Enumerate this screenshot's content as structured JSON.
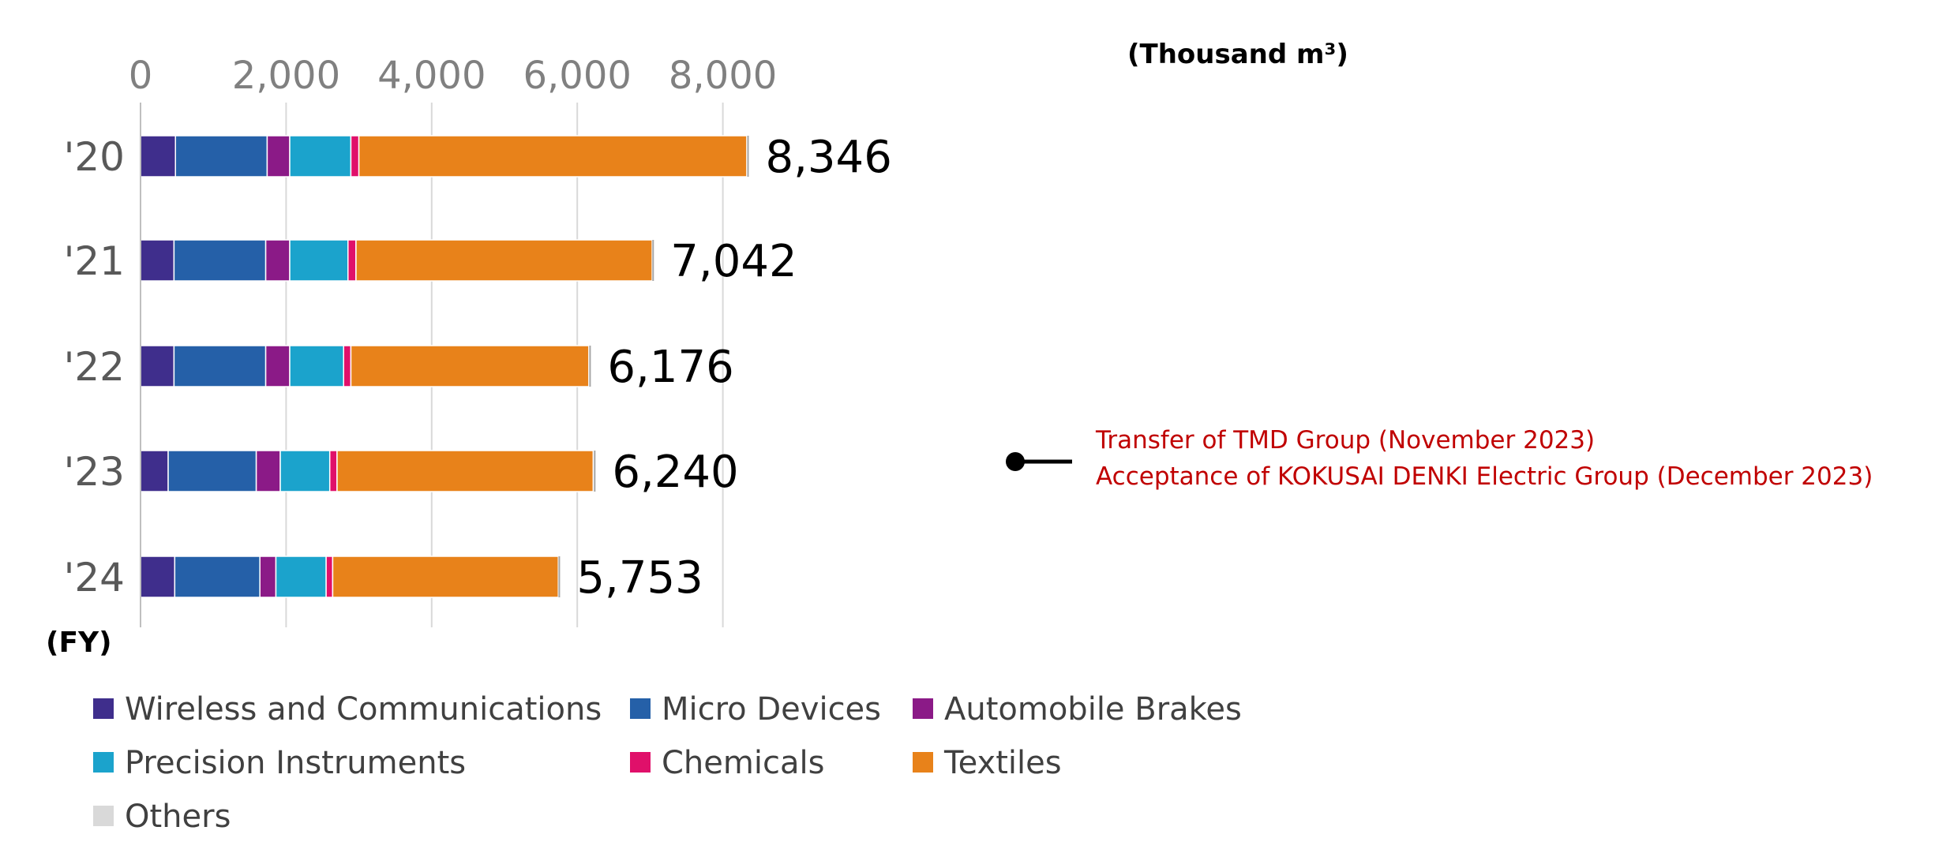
{
  "chart_data": {
    "type": "bar",
    "orientation": "horizontal",
    "stacked": true,
    "unit_label": "(Thousand m³)",
    "y_axis_label": "(FY)",
    "categories": [
      "'20",
      "'21",
      "'22",
      "'23",
      "'24"
    ],
    "xlim": [
      0,
      8500
    ],
    "x_ticks": [
      0,
      2000,
      4000,
      6000,
      8000
    ],
    "x_tick_labels": [
      "0",
      "2,000",
      "4,000",
      "6,000",
      "8,000"
    ],
    "grid": true,
    "legend_position": "bottom",
    "series": [
      {
        "name": "Wireless and Communications",
        "color": "#3f2e8c",
        "values": [
          480,
          460,
          460,
          380,
          470
        ]
      },
      {
        "name": "Micro Devices",
        "color": "#2560a8",
        "values": [
          1260,
          1260,
          1260,
          1210,
          1170
        ]
      },
      {
        "name": "Automobile Brakes",
        "color": "#8b1a87",
        "values": [
          310,
          330,
          330,
          330,
          220
        ]
      },
      {
        "name": "Precision Instruments",
        "color": "#1ba3cc",
        "values": [
          840,
          800,
          740,
          680,
          690
        ]
      },
      {
        "name": "Chemicals",
        "color": "#e0106a",
        "values": [
          110,
          110,
          100,
          100,
          90
        ]
      },
      {
        "name": "Textiles",
        "color": "#e8821a",
        "values": [
          5330,
          4070,
          3270,
          3520,
          3100
        ]
      },
      {
        "name": "Others",
        "color": "#d9d9d9",
        "values": [
          16,
          12,
          16,
          20,
          13
        ]
      }
    ],
    "totals": [
      8346,
      7042,
      6176,
      6240,
      5753
    ],
    "total_labels": [
      "8,346",
      "7,042",
      "6,176",
      "6,240",
      "5,753"
    ],
    "annotation": {
      "category": "'23",
      "lines": [
        "Transfer of TMD Group (November 2023)",
        "Acceptance of KOKUSAI DENKI Electric Group (December 2023)"
      ],
      "color": "#c00000"
    }
  }
}
